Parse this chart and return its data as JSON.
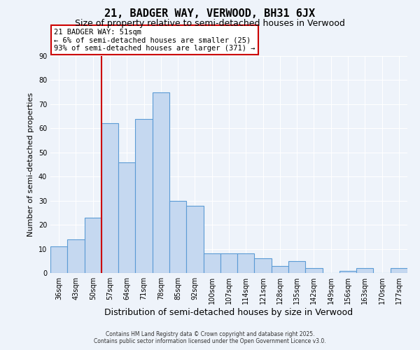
{
  "title": "21, BADGER WAY, VERWOOD, BH31 6JX",
  "subtitle": "Size of property relative to semi-detached houses in Verwood",
  "xlabel": "Distribution of semi-detached houses by size in Verwood",
  "ylabel": "Number of semi-detached properties",
  "categories": [
    "36sqm",
    "43sqm",
    "50sqm",
    "57sqm",
    "64sqm",
    "71sqm",
    "78sqm",
    "85sqm",
    "92sqm",
    "100sqm",
    "107sqm",
    "114sqm",
    "121sqm",
    "128sqm",
    "135sqm",
    "142sqm",
    "149sqm",
    "156sqm",
    "163sqm",
    "170sqm",
    "177sqm"
  ],
  "values": [
    11,
    14,
    23,
    62,
    46,
    64,
    75,
    30,
    28,
    8,
    8,
    8,
    6,
    3,
    5,
    2,
    0,
    1,
    2,
    0,
    2
  ],
  "bar_color": "#c5d8f0",
  "bar_edge_color": "#5b9bd5",
  "vline_x_index": 2,
  "vline_color": "#cc0000",
  "ylim": [
    0,
    90
  ],
  "yticks": [
    0,
    10,
    20,
    30,
    40,
    50,
    60,
    70,
    80,
    90
  ],
  "annotation_title": "21 BADGER WAY: 51sqm",
  "annotation_line1": "← 6% of semi-detached houses are smaller (25)",
  "annotation_line2": "93% of semi-detached houses are larger (371) →",
  "annotation_box_color": "#ffffff",
  "annotation_box_edge": "#cc0000",
  "footer1": "Contains HM Land Registry data © Crown copyright and database right 2025.",
  "footer2": "Contains public sector information licensed under the Open Government Licence v3.0.",
  "background_color": "#eef3fa",
  "grid_color": "#ffffff",
  "title_fontsize": 11,
  "subtitle_fontsize": 9,
  "xlabel_fontsize": 9,
  "ylabel_fontsize": 8
}
